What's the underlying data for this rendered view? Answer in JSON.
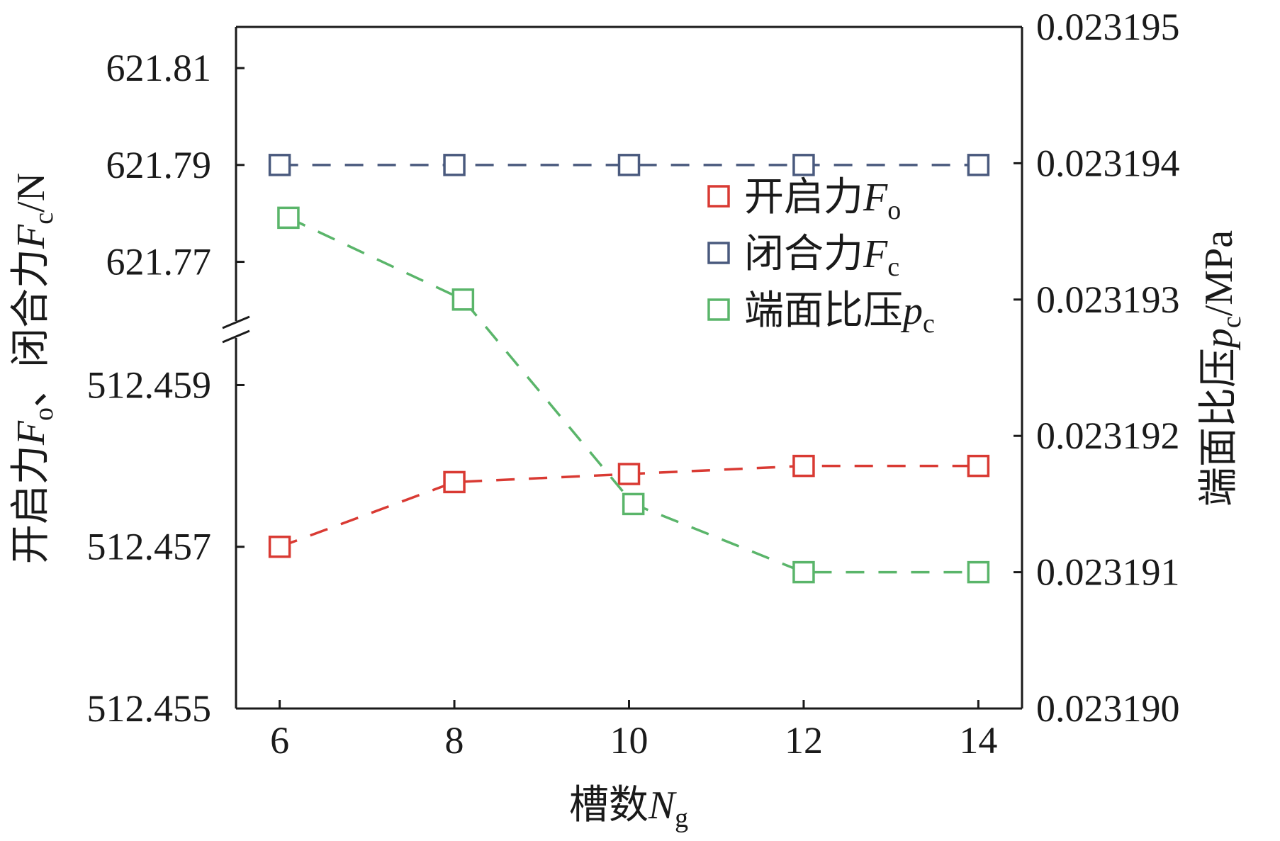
{
  "chart_data": {
    "type": "line",
    "x": [
      6,
      8,
      10,
      12,
      14
    ],
    "xlabel": {
      "main": "槽数",
      "var": "N",
      "sub": "g"
    },
    "xlim": [
      5.5,
      14.5
    ],
    "x_ticks": [
      "6",
      "8",
      "10",
      "12",
      "14"
    ],
    "ylabel_left": {
      "p1": "开启力",
      "v1": "F",
      "s1": "o",
      "p2": "、闭合力",
      "v2": "F",
      "s2": "c",
      "unit": "/N"
    },
    "ylabel_right": {
      "p1": "端面比压",
      "v1": "p",
      "s1": "c",
      "unit": "/MPa"
    },
    "y_left_upper": {
      "range": [
        621.7575,
        621.8185
      ],
      "ticks": [
        "621.77",
        "621.79",
        "621.81"
      ]
    },
    "y_left_lower": {
      "range": [
        512.455,
        512.4596
      ],
      "ticks": [
        "512.455",
        "512.457",
        "512.459"
      ]
    },
    "y_right": {
      "range": [
        0.02319,
        0.023195
      ],
      "ticks": [
        "0.023190",
        "0.023191",
        "0.023192",
        "0.023193",
        "0.023194",
        "0.023195"
      ]
    },
    "axis_break": true,
    "series": [
      {
        "name": "开启力",
        "var": "F",
        "sub": "o",
        "axis": "left-lower",
        "color": "#d93a33",
        "points": [
          [
            6,
            512.457
          ],
          [
            8,
            512.4578
          ],
          [
            10,
            512.4579
          ],
          [
            12,
            512.458
          ],
          [
            14,
            512.458
          ]
        ]
      },
      {
        "name": "闭合力",
        "var": "F",
        "sub": "c",
        "axis": "left-upper",
        "color": "#4a5a7e",
        "points": [
          [
            6,
            621.79
          ],
          [
            8,
            621.79
          ],
          [
            10,
            621.79
          ],
          [
            12,
            621.79
          ],
          [
            14,
            621.79
          ]
        ]
      },
      {
        "name": "端面比压",
        "var": "p",
        "sub": "c",
        "axis": "right",
        "color": "#5ab56a",
        "points": [
          [
            6.1,
            0.0231936
          ],
          [
            8.1,
            0.023193
          ],
          [
            10.05,
            0.0231915
          ],
          [
            12,
            0.023191
          ],
          [
            14,
            0.023191
          ]
        ]
      }
    ],
    "legend_position": "upper-right inside",
    "grid": false
  }
}
